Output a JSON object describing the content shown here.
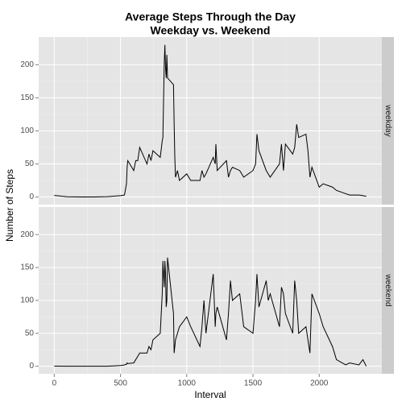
{
  "chart_data": {
    "type": "line",
    "title": [
      "Average Steps Through the Day",
      "Weekday vs. Weekend"
    ],
    "xlabel": "Interval",
    "ylabel": "Number of Steps",
    "xlim": [
      -117.75,
      2472.75
    ],
    "ylim": [
      -11.5,
      241.9
    ],
    "xticks": [
      0,
      500,
      1000,
      1500,
      2000
    ],
    "yticks": [
      0,
      50,
      100,
      150,
      200
    ],
    "grid": true,
    "x": [
      0,
      100,
      200,
      300,
      400,
      500,
      530,
      545,
      550,
      555,
      600,
      615,
      630,
      645,
      700,
      715,
      730,
      745,
      800,
      815,
      820,
      830,
      835,
      840,
      845,
      850,
      855,
      900,
      905,
      910,
      915,
      930,
      945,
      1000,
      1030,
      1100,
      1115,
      1130,
      1145,
      1200,
      1215,
      1220,
      1230,
      1300,
      1315,
      1330,
      1345,
      1400,
      1430,
      1500,
      1520,
      1530,
      1545,
      1600,
      1615,
      1630,
      1700,
      1715,
      1730,
      1745,
      1800,
      1815,
      1830,
      1845,
      1900,
      1915,
      1930,
      1945,
      2000,
      2030,
      2100,
      2130,
      2200,
      2230,
      2300,
      2330,
      2355
    ],
    "series": [
      {
        "name": "weekday",
        "color": "#000000",
        "values": [
          2.3,
          0.4,
          0,
          0,
          0.5,
          2,
          3,
          20,
          45,
          55,
          40,
          55,
          55,
          75,
          50,
          65,
          55,
          70,
          60,
          85,
          90,
          200,
          230,
          195,
          180,
          215,
          180,
          170,
          110,
          60,
          30,
          40,
          25,
          35,
          25,
          25,
          40,
          30,
          35,
          60,
          50,
          80,
          40,
          55,
          30,
          40,
          45,
          40,
          30,
          40,
          50,
          95,
          70,
          40,
          35,
          30,
          50,
          80,
          40,
          80,
          65,
          75,
          110,
          90,
          95,
          70,
          30,
          45,
          15,
          20,
          15,
          10,
          5,
          3,
          3,
          2,
          1
        ]
      },
      {
        "name": "weekend",
        "color": "#000000",
        "values": [
          0.2,
          0,
          0,
          0,
          0,
          1,
          2,
          3,
          5,
          4,
          5,
          10,
          15,
          20,
          20,
          30,
          25,
          40,
          50,
          110,
          160,
          120,
          160,
          140,
          90,
          100,
          165,
          80,
          20,
          30,
          40,
          50,
          60,
          75,
          60,
          30,
          60,
          100,
          50,
          140,
          60,
          80,
          90,
          40,
          80,
          130,
          100,
          110,
          60,
          50,
          100,
          140,
          90,
          130,
          100,
          110,
          60,
          120,
          110,
          80,
          50,
          130,
          100,
          50,
          60,
          40,
          20,
          110,
          80,
          60,
          30,
          10,
          2,
          5,
          2,
          10,
          0
        ]
      }
    ]
  }
}
